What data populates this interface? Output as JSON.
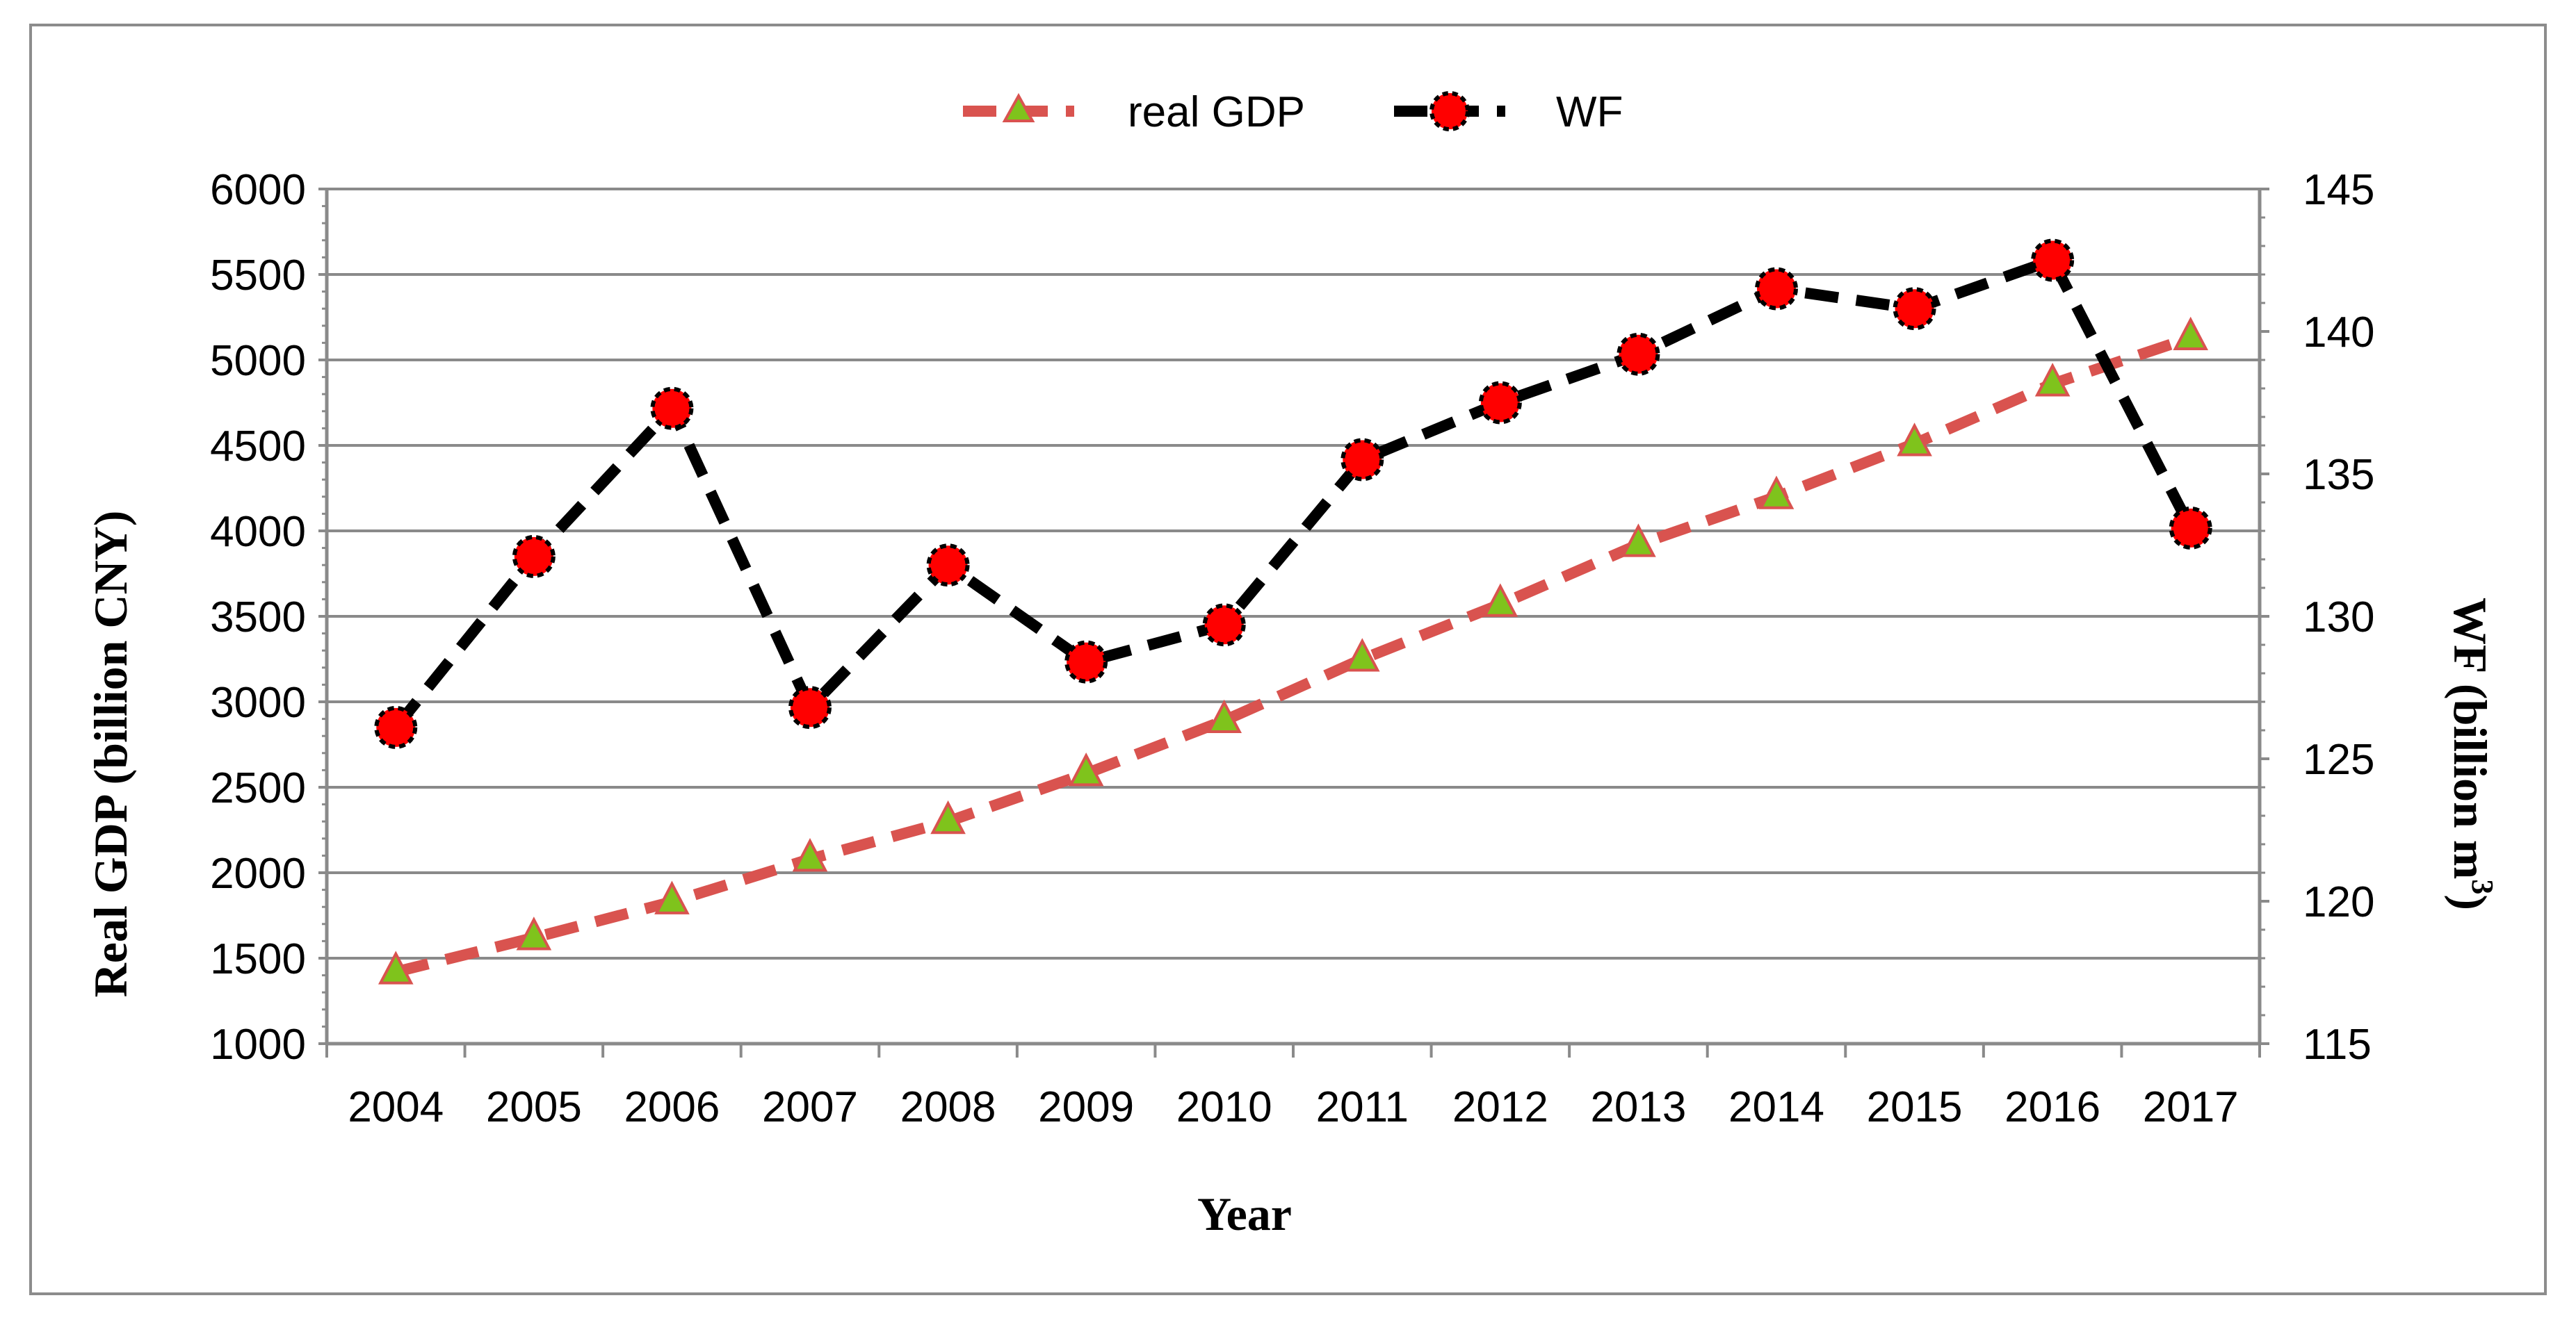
{
  "chart_data": {
    "type": "line",
    "title": "",
    "xlabel": "Year",
    "ylabel": "Real GDP (billion CNY)",
    "y2label_main": "WF (billion m",
    "y2label_sup": "3",
    "y2label_end": ")",
    "categories": [
      "2004",
      "2005",
      "2006",
      "2007",
      "2008",
      "2009",
      "2010",
      "2011",
      "2012",
      "2013",
      "2014",
      "2015",
      "2016",
      "2017"
    ],
    "ylim": [
      1000,
      6000
    ],
    "yticks": [
      "1000",
      "1500",
      "2000",
      "2500",
      "3000",
      "3500",
      "4000",
      "4500",
      "5000",
      "5500",
      "6000"
    ],
    "y2lim": [
      115,
      145
    ],
    "y2ticks": [
      "115",
      "120",
      "125",
      "130",
      "135",
      "140",
      "145"
    ],
    "legend_position": "top-center",
    "grid": true,
    "series": [
      {
        "name": "real GDP",
        "axis": "left",
        "line_color": "#d9534f",
        "marker_fill": "#7fc31c",
        "marker": "triangle",
        "values": [
          1420,
          1620,
          1830,
          2080,
          2300,
          2580,
          2890,
          3250,
          3570,
          3920,
          4200,
          4510,
          4860,
          5130
        ]
      },
      {
        "name": "WF",
        "axis": "right",
        "line_color": "#000000",
        "marker_fill": "#ff0000",
        "marker": "circle",
        "values": [
          126.1,
          132.1,
          137.3,
          126.8,
          131.8,
          128.4,
          129.7,
          135.5,
          137.5,
          139.2,
          141.5,
          140.8,
          142.5,
          133.1
        ]
      }
    ]
  }
}
